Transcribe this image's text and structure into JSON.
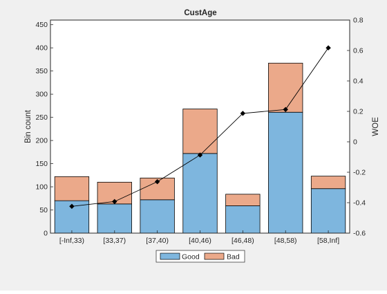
{
  "figure": {
    "background": "#f0f0f0",
    "axes_background": "#ffffff"
  },
  "chart_data": {
    "type": "bar",
    "stacked": true,
    "title": "CustAge",
    "categories": [
      "[-Inf,33)",
      "[33,37)",
      "[37,40)",
      "[40,46)",
      "[46,48)",
      "[48,58)",
      "[58,Inf]"
    ],
    "series": [
      {
        "name": "Good",
        "values": [
          70,
          63,
          72,
          172,
          59,
          261,
          96
        ],
        "color": "#7eb6de"
      },
      {
        "name": "Bad",
        "values": [
          52,
          47,
          47,
          96,
          25,
          106,
          27
        ],
        "color": "#eba98a"
      }
    ],
    "woe": {
      "values": [
        -0.4241,
        -0.3925,
        -0.2618,
        -0.0867,
        0.1869,
        0.2123,
        0.6173
      ],
      "color": "#000000"
    },
    "ylabel": "Bin count",
    "ylabel_right": "WOE",
    "ylim": [
      0,
      460
    ],
    "yticks": [
      0,
      50,
      100,
      150,
      200,
      250,
      300,
      350,
      400,
      450
    ],
    "ylim_right": [
      -0.6,
      0.8
    ],
    "yticks_right": [
      -0.6,
      -0.4,
      -0.2,
      0,
      0.2,
      0.4,
      0.6,
      0.8
    ],
    "ytick_labels_right": [
      "-0.6",
      "-0.4",
      "-0.2",
      "0",
      "0.2",
      "0.4",
      "0.6",
      "0.8"
    ],
    "grid": false,
    "legend": {
      "position": "bottom-center",
      "orientation": "horizontal",
      "entries": [
        "Good",
        "Bad"
      ]
    }
  }
}
